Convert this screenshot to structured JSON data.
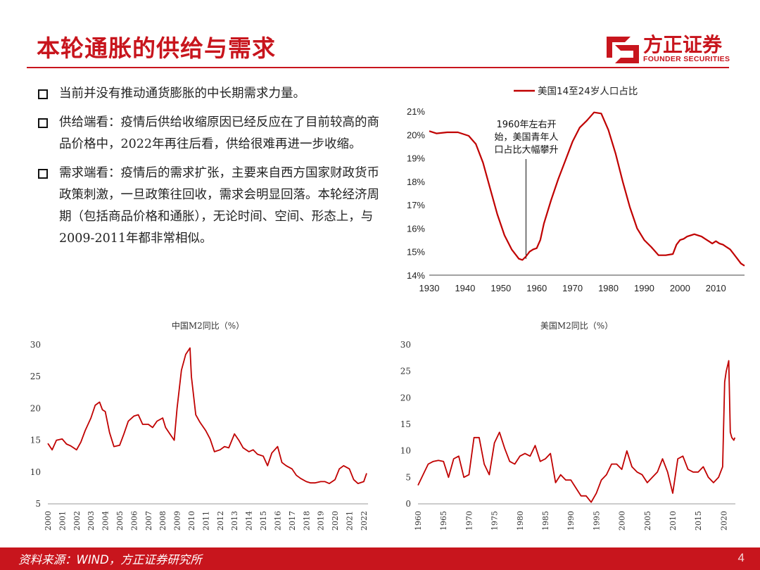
{
  "title": "本轮通胀的供给与需求",
  "logo": {
    "cn": "方正证券",
    "en": "FOUNDER SECURITIES"
  },
  "bullets": [
    "当前并没有推动通货膨胀的中长期需求力量。",
    "供给端看：疫情后供给收缩原因已经反应在了目前较高的商品价格中，2022年再往后看，供给很难再进一步收缩。",
    "需求端看：疫情后的需求扩张，主要来自西方国家财政货币政策刺激，一旦政策往回收，需求会明显回落。本轮经济周期（包括商品价格和通胀），无论时间、空间、形态上，与2009-2011年都非常相似。"
  ],
  "footer": {
    "source": "资料来源：WIND，方正证券研究所",
    "page": "4"
  },
  "colors": {
    "accent": "#c8151d",
    "line": "#c00000"
  },
  "chart_data": [
    {
      "type": "line",
      "title": "",
      "legend": "美国14至24岁人口占比",
      "legend_position": "top",
      "annotation": [
        "1960年左右开",
        "始，美国青年人",
        "口占比大幅攀升"
      ],
      "annotation_x": 1957,
      "xlim": [
        1930,
        2018
      ],
      "ylim": [
        14,
        21
      ],
      "x_ticks": [
        1930,
        1940,
        1950,
        1960,
        1970,
        1980,
        1990,
        2000,
        2010
      ],
      "y_ticks": [
        14,
        15,
        16,
        17,
        18,
        19,
        20,
        21
      ],
      "y_tick_labels": [
        "14%",
        "15%",
        "16%",
        "17%",
        "18%",
        "19%",
        "20%",
        "21%"
      ],
      "x": [
        1930,
        1932,
        1935,
        1938,
        1941,
        1943,
        1945,
        1947,
        1949,
        1951,
        1953,
        1955,
        1956,
        1957,
        1958,
        1959,
        1960,
        1961,
        1962,
        1964,
        1966,
        1968,
        1970,
        1972,
        1974,
        1976,
        1978,
        1980,
        1982,
        1984,
        1986,
        1988,
        1990,
        1992,
        1994,
        1995,
        1996,
        1998,
        1999,
        2000,
        2001,
        2002,
        2003,
        2004,
        2005,
        2006,
        2007,
        2008,
        2009,
        2010,
        2011,
        2012,
        2013,
        2014,
        2015,
        2016,
        2017,
        2018
      ],
      "y": [
        20.15,
        20.05,
        20.1,
        20.1,
        19.95,
        19.6,
        18.8,
        17.7,
        16.6,
        15.7,
        15.1,
        14.7,
        14.65,
        14.8,
        15.0,
        15.1,
        15.15,
        15.5,
        16.2,
        17.2,
        18.1,
        18.9,
        19.7,
        20.3,
        20.6,
        20.95,
        20.9,
        20.2,
        19.2,
        18.0,
        16.9,
        16.0,
        15.5,
        15.2,
        14.85,
        14.85,
        14.85,
        14.9,
        15.3,
        15.5,
        15.55,
        15.65,
        15.7,
        15.75,
        15.7,
        15.65,
        15.55,
        15.45,
        15.35,
        15.45,
        15.35,
        15.3,
        15.2,
        15.1,
        14.9,
        14.7,
        14.5,
        14.4
      ],
      "color": "#c00000"
    },
    {
      "type": "line",
      "title": "中国M2同比（%）",
      "xlim": [
        2000,
        2022.3
      ],
      "ylim": [
        5,
        30
      ],
      "x_ticks": [
        2000,
        2001,
        2002,
        2003,
        2004,
        2005,
        2006,
        2007,
        2008,
        2009,
        2010,
        2011,
        2012,
        2013,
        2014,
        2015,
        2016,
        2017,
        2018,
        2019,
        2020,
        2021,
        2022
      ],
      "y_ticks": [
        5,
        10,
        15,
        20,
        25,
        30
      ],
      "x": [
        2000,
        2000.3,
        2000.6,
        2001,
        2001.3,
        2001.6,
        2002,
        2002.3,
        2002.6,
        2003,
        2003.3,
        2003.6,
        2003.8,
        2004,
        2004.3,
        2004.6,
        2005,
        2005.3,
        2005.6,
        2006,
        2006.3,
        2006.6,
        2007,
        2007.3,
        2007.6,
        2008,
        2008.2,
        2008.5,
        2008.8,
        2009,
        2009.3,
        2009.6,
        2009.9,
        2010,
        2010.3,
        2010.6,
        2011,
        2011.3,
        2011.6,
        2012,
        2012.3,
        2012.6,
        2013,
        2013.3,
        2013.6,
        2014,
        2014.3,
        2014.6,
        2015,
        2015.3,
        2015.6,
        2016,
        2016.3,
        2016.6,
        2017,
        2017.3,
        2017.6,
        2018,
        2018.3,
        2018.6,
        2019,
        2019.3,
        2019.6,
        2020,
        2020.3,
        2020.6,
        2021,
        2021.3,
        2021.6,
        2022,
        2022.2
      ],
      "y": [
        14.5,
        13.5,
        15.0,
        15.2,
        14.4,
        14.1,
        13.5,
        14.7,
        16.5,
        18.5,
        20.5,
        21.0,
        19.8,
        19.5,
        16.2,
        14.0,
        14.2,
        16.0,
        18.0,
        18.8,
        19.0,
        17.5,
        17.5,
        17.0,
        18.0,
        18.5,
        17.0,
        16.0,
        15.0,
        20.0,
        26.0,
        28.5,
        29.5,
        25.0,
        19.0,
        17.8,
        16.5,
        15.2,
        13.2,
        13.5,
        14.0,
        13.8,
        16.0,
        15.0,
        13.8,
        13.2,
        13.5,
        12.8,
        12.5,
        11.0,
        13.0,
        14.0,
        11.5,
        11.0,
        10.5,
        9.5,
        9.0,
        8.5,
        8.3,
        8.3,
        8.5,
        8.5,
        8.2,
        8.8,
        10.5,
        11.0,
        10.5,
        8.8,
        8.2,
        8.5,
        9.8
      ],
      "color": "#c00000"
    },
    {
      "type": "line",
      "title": "美国M2同比（%）",
      "xlim": [
        1960,
        2022.3
      ],
      "ylim": [
        0,
        30
      ],
      "x_ticks": [
        1960,
        1965,
        1970,
        1975,
        1980,
        1985,
        1990,
        1995,
        2000,
        2005,
        2010,
        2015,
        2020
      ],
      "y_ticks": [
        0,
        5,
        10,
        15,
        20,
        25,
        30
      ],
      "x": [
        1960,
        1961,
        1962,
        1963,
        1964,
        1965,
        1966,
        1967,
        1968,
        1969,
        1970,
        1971,
        1972,
        1973,
        1974,
        1975,
        1976,
        1977,
        1978,
        1979,
        1980,
        1981,
        1982,
        1983,
        1984,
        1985,
        1986,
        1987,
        1988,
        1989,
        1990,
        1991,
        1992,
        1993,
        1994,
        1995,
        1996,
        1997,
        1998,
        1999,
        2000,
        2001,
        2002,
        2003,
        2004,
        2005,
        2006,
        2007,
        2008,
        2009,
        2010,
        2011,
        2012,
        2013,
        2014,
        2015,
        2016,
        2017,
        2018,
        2019,
        2019.8,
        2020.2,
        2020.5,
        2021,
        2021.3,
        2021.6,
        2022,
        2022.2
      ],
      "y": [
        3.5,
        5.5,
        7.5,
        8.0,
        8.2,
        8.0,
        5.0,
        8.5,
        9.0,
        5.0,
        5.5,
        12.5,
        12.5,
        7.5,
        5.5,
        11.5,
        13.5,
        10.5,
        8.0,
        7.5,
        9.0,
        9.5,
        9.0,
        11.0,
        8.0,
        8.5,
        9.5,
        4.0,
        5.5,
        4.5,
        4.5,
        3.0,
        1.5,
        1.5,
        0.3,
        2.0,
        4.5,
        5.5,
        7.5,
        7.5,
        6.5,
        10.0,
        7.0,
        6.0,
        5.5,
        4.0,
        5.0,
        6.0,
        8.5,
        6.0,
        2.0,
        8.5,
        9.0,
        6.5,
        6.0,
        6.0,
        7.0,
        5.0,
        4.0,
        5.0,
        7.0,
        23.0,
        25.0,
        27.0,
        13.5,
        12.5,
        12.0,
        12.5
      ],
      "color": "#c00000"
    }
  ]
}
